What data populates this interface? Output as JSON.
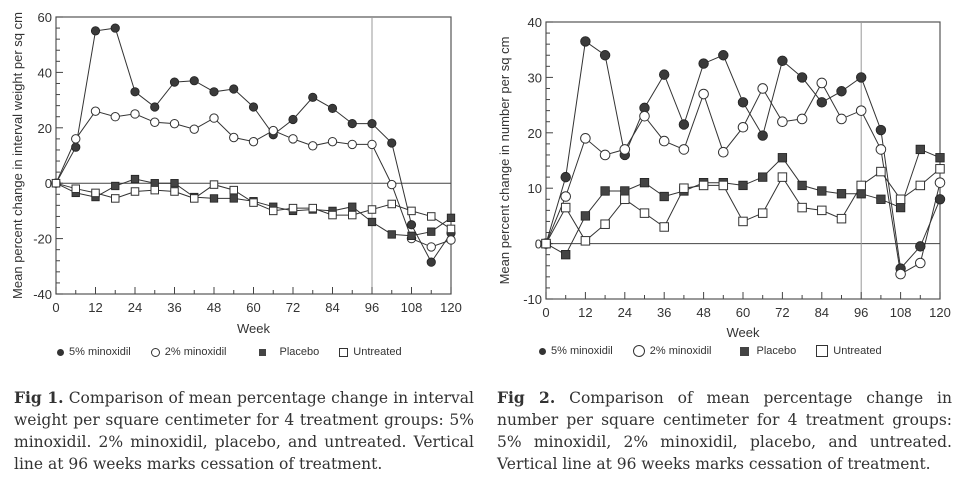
{
  "chart_data": [
    {
      "type": "line",
      "id": "fig1",
      "title": "",
      "xlabel": "Week",
      "ylabel": "Mean percent change in interval weight per sq cm",
      "xlim": [
        0,
        120
      ],
      "ylim": [
        -40,
        60
      ],
      "xticks": [
        0,
        12,
        24,
        36,
        48,
        60,
        72,
        84,
        96,
        108,
        120
      ],
      "yticks": [
        -40,
        -20,
        0,
        20,
        40,
        60
      ],
      "vertical_line_x": 96,
      "reference_line_y": 0,
      "x": [
        0,
        6,
        12,
        18,
        24,
        30,
        36,
        42,
        48,
        54,
        60,
        66,
        72,
        78,
        84,
        90,
        96,
        102,
        108,
        114,
        120
      ],
      "series": [
        {
          "name": "5% minoxidil",
          "marker": "filled-circle",
          "values": [
            0,
            13,
            55,
            56,
            33,
            27.5,
            36.5,
            37,
            33,
            34,
            27.5,
            17.5,
            23,
            31,
            27,
            21.5,
            21.5,
            14.5,
            -15,
            -28.5,
            -18
          ]
        },
        {
          "name": "2% minoxidil",
          "marker": "open-circle",
          "values": [
            0,
            16,
            26,
            24,
            25,
            22,
            21.5,
            19.5,
            23.5,
            16.5,
            15,
            19,
            16,
            13.5,
            15,
            14,
            14,
            -0.5,
            -20,
            -23,
            -20.5
          ]
        },
        {
          "name": "Placebo",
          "marker": "filled-square",
          "values": [
            0,
            -3.5,
            -5,
            -1,
            1.5,
            0,
            0,
            -5,
            -5.5,
            -5.5,
            -6.5,
            -8.5,
            -10,
            -9.5,
            -10,
            -8.5,
            -14,
            -18.5,
            -19,
            -17.5,
            -12.5
          ]
        },
        {
          "name": "Untreated",
          "marker": "open-square",
          "values": [
            0,
            -2,
            -3.5,
            -5.5,
            -3,
            -2.5,
            -3,
            -5.5,
            -0.5,
            -2.5,
            -7,
            -10,
            -9,
            -9,
            -11.5,
            -11.5,
            -9.5,
            -7.5,
            -10,
            -12,
            -16.5
          ]
        }
      ],
      "legend": [
        "5% minoxidil",
        "2% minoxidil",
        "Placebo",
        "Untreated"
      ],
      "legend_position": "bottom",
      "caption_label": "Fig 1.",
      "caption_text": " Comparison of mean percentage change in interval weight per square centimeter for 4 treatment groups: 5% minoxidil. 2% minoxidil, placebo, and untreated. Vertical line at 96 weeks marks cessation of treatment."
    },
    {
      "type": "line",
      "id": "fig2",
      "title": "",
      "xlabel": "Week",
      "ylabel": "Mean percent change in number per sq cm",
      "xlim": [
        0,
        120
      ],
      "ylim": [
        -10,
        40
      ],
      "xticks": [
        0,
        12,
        24,
        36,
        48,
        60,
        72,
        84,
        96,
        108,
        120
      ],
      "yticks": [
        -10,
        0,
        10,
        20,
        30,
        40
      ],
      "vertical_line_x": 96,
      "reference_line_y": 0,
      "x": [
        0,
        6,
        12,
        18,
        24,
        30,
        36,
        42,
        48,
        54,
        60,
        66,
        72,
        78,
        84,
        90,
        96,
        102,
        108,
        114,
        120
      ],
      "series": [
        {
          "name": "5% minoxidil",
          "marker": "filled-circle",
          "values": [
            0,
            12,
            36.5,
            34,
            16,
            24.5,
            30.5,
            21.5,
            32.5,
            34,
            25.5,
            19.5,
            33,
            30,
            25.5,
            27.5,
            30,
            20.5,
            -4.5,
            -0.5,
            8
          ]
        },
        {
          "name": "2% minoxidil",
          "marker": "open-circle",
          "values": [
            0,
            8.5,
            19,
            16,
            17,
            23,
            18.5,
            17,
            27,
            16.5,
            21,
            28,
            22,
            22.5,
            29,
            22.5,
            24,
            17,
            -5.5,
            -3.5,
            11
          ]
        },
        {
          "name": "Placebo",
          "marker": "filled-square",
          "values": [
            0,
            -2,
            5,
            9.5,
            9.5,
            11,
            8.5,
            9.5,
            11,
            11,
            10.5,
            12,
            15.5,
            10.5,
            9.5,
            9,
            9,
            8,
            6.5,
            17,
            15.5
          ]
        },
        {
          "name": "Untreated",
          "marker": "open-square",
          "values": [
            0,
            6.5,
            0.5,
            3.5,
            8,
            5.5,
            3,
            10,
            10.5,
            10.5,
            4,
            5.5,
            12,
            6.5,
            6,
            4.5,
            10.5,
            13,
            8,
            10.5,
            13.5
          ]
        }
      ],
      "legend": [
        "5% minoxidil",
        "2% minoxidil",
        "Placebo",
        "Untreated"
      ],
      "legend_position": "bottom",
      "caption_label": "Fig 2.",
      "caption_text": " Comparison of mean percentage change in number per square centimeter for 4 treatment groups: 5% minoxidil, 2% minoxidil, placebo, and untreated. Vertical line at 96 weeks marks cessation of treatment."
    }
  ]
}
